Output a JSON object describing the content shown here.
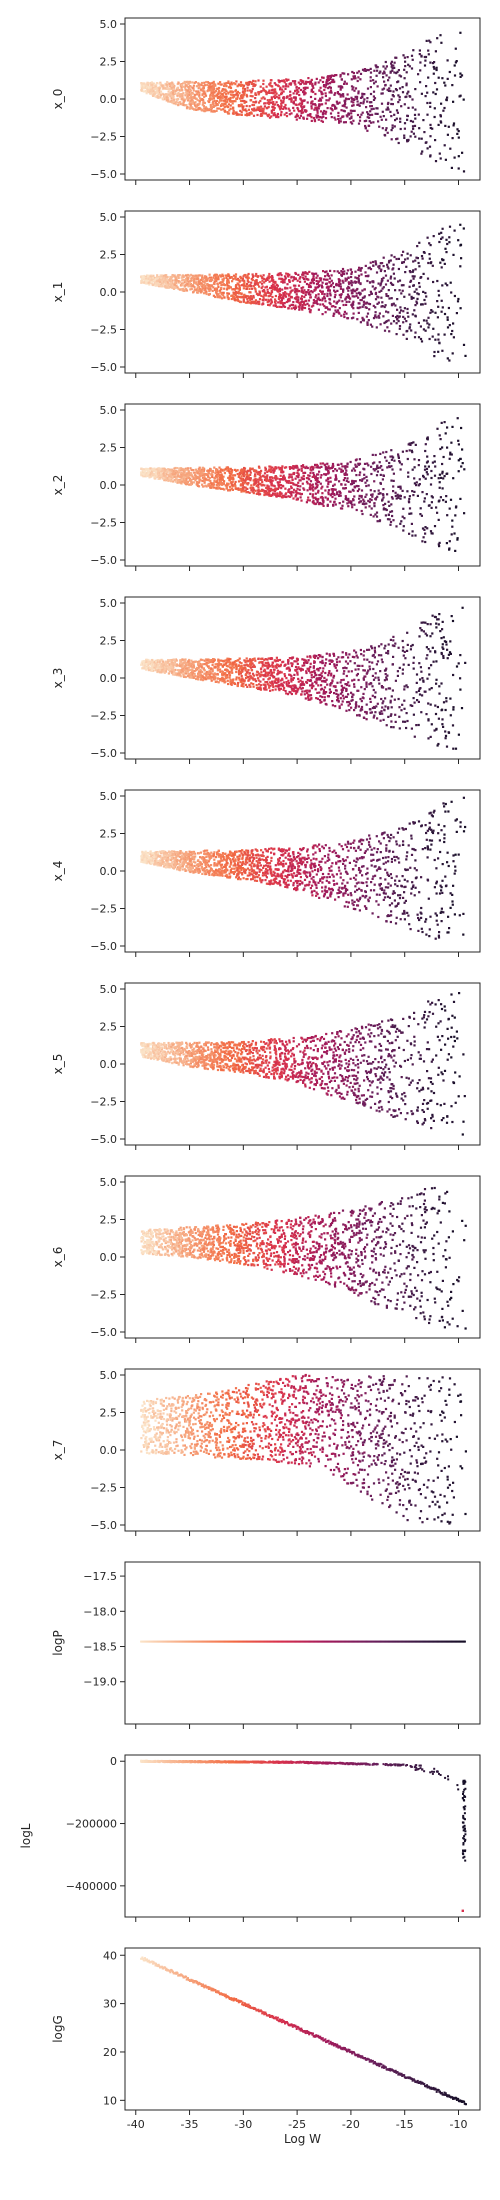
{
  "chart_data": {
    "type": "scatter",
    "layout": "stacked-subplots-shared-x",
    "xlabel": "Log W",
    "xlim": [
      -41,
      -8
    ],
    "xticks": [
      "-40",
      "-35",
      "-30",
      "-25",
      "-20",
      "-15",
      "-10"
    ],
    "xtick_values": [
      -40,
      -35,
      -30,
      -25,
      -20,
      -15,
      -10
    ],
    "colormap": "rocket",
    "colormap_stops": [
      "#fbe3c8",
      "#f6a47c",
      "#f26a43",
      "#d7304d",
      "#a11a5b",
      "#6b1f5c",
      "#3b1a44",
      "#150e26"
    ],
    "grid": false,
    "legend": "none",
    "panels": [
      {
        "ylabel": "x_0",
        "ylim": [
          -5.4,
          5.4
        ],
        "yticks": [
          "−5.0",
          "−2.5",
          "0.0",
          "2.5",
          "5.0"
        ],
        "ytick_values": [
          -5,
          -2.5,
          0,
          2.5,
          5
        ],
        "kind": "funnel",
        "left_x": -39.5,
        "upper_edge": [
          [
            -39.5,
            1.1
          ],
          [
            -30,
            1.2
          ],
          [
            -25,
            1.35
          ],
          [
            -20,
            1.8
          ],
          [
            -15,
            3.1
          ],
          [
            -12,
            4.4
          ],
          [
            -9.3,
            5.0
          ]
        ],
        "lower_edge": [
          [
            -39.5,
            0.5
          ],
          [
            -35,
            -0.7
          ],
          [
            -30,
            -1.1
          ],
          [
            -25,
            -1.4
          ],
          [
            -20,
            -1.7
          ],
          [
            -15,
            -3.1
          ],
          [
            -12,
            -4.2
          ],
          [
            -9.3,
            -5.0
          ]
        ]
      },
      {
        "ylabel": "x_1",
        "ylim": [
          -5.4,
          5.4
        ],
        "yticks": [
          "−5.0",
          "−2.5",
          "0.0",
          "2.5",
          "5.0"
        ],
        "ytick_values": [
          -5,
          -2.5,
          0,
          2.5,
          5
        ],
        "kind": "funnel",
        "left_x": -39.5,
        "upper_edge": [
          [
            -39.5,
            1.1
          ],
          [
            -30,
            1.2
          ],
          [
            -25,
            1.3
          ],
          [
            -20,
            1.6
          ],
          [
            -15,
            2.8
          ],
          [
            -12,
            4.2
          ],
          [
            -9.3,
            5.0
          ]
        ],
        "lower_edge": [
          [
            -39.5,
            0.6
          ],
          [
            -35,
            0.0
          ],
          [
            -30,
            -0.7
          ],
          [
            -25,
            -1.2
          ],
          [
            -20,
            -1.8
          ],
          [
            -15,
            -3.2
          ],
          [
            -12,
            -4.4
          ],
          [
            -9.3,
            -5.0
          ]
        ]
      },
      {
        "ylabel": "x_2",
        "ylim": [
          -5.4,
          5.4
        ],
        "yticks": [
          "−5.0",
          "−2.5",
          "0.0",
          "2.5",
          "5.0"
        ],
        "ytick_values": [
          -5,
          -2.5,
          0,
          2.5,
          5
        ],
        "kind": "funnel",
        "left_x": -39.5,
        "upper_edge": [
          [
            -39.5,
            1.1
          ],
          [
            -30,
            1.2
          ],
          [
            -25,
            1.3
          ],
          [
            -20,
            1.6
          ],
          [
            -15,
            2.6
          ],
          [
            -12,
            4.0
          ],
          [
            -9.3,
            5.0
          ]
        ],
        "lower_edge": [
          [
            -39.5,
            0.6
          ],
          [
            -35,
            0.0
          ],
          [
            -30,
            -0.5
          ],
          [
            -25,
            -1.0
          ],
          [
            -20,
            -1.8
          ],
          [
            -15,
            -3.1
          ],
          [
            -12,
            -4.4
          ],
          [
            -9.3,
            -5.0
          ]
        ]
      },
      {
        "ylabel": "x_3",
        "ylim": [
          -5.4,
          5.4
        ],
        "yticks": [
          "−5.0",
          "−2.5",
          "0.0",
          "2.5",
          "5.0"
        ],
        "ytick_values": [
          -5,
          -2.5,
          0,
          2.5,
          5
        ],
        "kind": "funnel",
        "left_x": -39.5,
        "upper_edge": [
          [
            -39.5,
            1.2
          ],
          [
            -30,
            1.3
          ],
          [
            -25,
            1.4
          ],
          [
            -20,
            1.8
          ],
          [
            -15,
            3.0
          ],
          [
            -12,
            4.5
          ],
          [
            -9.3,
            5.0
          ]
        ],
        "lower_edge": [
          [
            -39.5,
            0.6
          ],
          [
            -35,
            0.0
          ],
          [
            -30,
            -0.6
          ],
          [
            -25,
            -1.2
          ],
          [
            -20,
            -2.4
          ],
          [
            -15,
            -3.6
          ],
          [
            -12,
            -4.6
          ],
          [
            -9.3,
            -5.0
          ]
        ]
      },
      {
        "ylabel": "x_4",
        "ylim": [
          -5.4,
          5.4
        ],
        "yticks": [
          "−5.0",
          "−2.5",
          "0.0",
          "2.5",
          "5.0"
        ],
        "ytick_values": [
          -5,
          -2.5,
          0,
          2.5,
          5
        ],
        "kind": "funnel",
        "left_x": -39.5,
        "upper_edge": [
          [
            -39.5,
            1.3
          ],
          [
            -30,
            1.4
          ],
          [
            -25,
            1.6
          ],
          [
            -20,
            2.0
          ],
          [
            -15,
            3.1
          ],
          [
            -12,
            4.4
          ],
          [
            -9.3,
            5.0
          ]
        ],
        "lower_edge": [
          [
            -39.5,
            0.6
          ],
          [
            -35,
            -0.1
          ],
          [
            -30,
            -0.6
          ],
          [
            -25,
            -1.3
          ],
          [
            -20,
            -2.5
          ],
          [
            -15,
            -3.8
          ],
          [
            -12,
            -4.7
          ],
          [
            -9.3,
            -5.0
          ]
        ]
      },
      {
        "ylabel": "x_5",
        "ylim": [
          -5.4,
          5.4
        ],
        "yticks": [
          "−5.0",
          "−2.5",
          "0.0",
          "2.5",
          "5.0"
        ],
        "ytick_values": [
          -5,
          -2.5,
          0,
          2.5,
          5
        ],
        "kind": "funnel",
        "left_x": -39.5,
        "upper_edge": [
          [
            -39.5,
            1.4
          ],
          [
            -30,
            1.5
          ],
          [
            -25,
            1.8
          ],
          [
            -20,
            2.3
          ],
          [
            -15,
            3.3
          ],
          [
            -12,
            4.5
          ],
          [
            -9.3,
            5.0
          ]
        ],
        "lower_edge": [
          [
            -39.5,
            0.5
          ],
          [
            -35,
            -0.2
          ],
          [
            -30,
            -0.6
          ],
          [
            -25,
            -1.3
          ],
          [
            -20,
            -2.6
          ],
          [
            -15,
            -3.8
          ],
          [
            -12,
            -4.7
          ],
          [
            -9.3,
            -5.0
          ]
        ]
      },
      {
        "ylabel": "x_6",
        "ylim": [
          -5.4,
          5.4
        ],
        "yticks": [
          "−5.0",
          "−2.5",
          "0.0",
          "2.5",
          "5.0"
        ],
        "ytick_values": [
          -5,
          -2.5,
          0,
          2.5,
          5
        ],
        "kind": "funnel",
        "left_x": -39.5,
        "upper_edge": [
          [
            -39.5,
            1.8
          ],
          [
            -30,
            2.2
          ],
          [
            -25,
            2.6
          ],
          [
            -20,
            3.2
          ],
          [
            -15,
            4.1
          ],
          [
            -12,
            4.8
          ],
          [
            -9.3,
            5.0
          ]
        ],
        "lower_edge": [
          [
            -39.5,
            0.2
          ],
          [
            -35,
            0.0
          ],
          [
            -30,
            -0.5
          ],
          [
            -25,
            -1.2
          ],
          [
            -20,
            -2.3
          ],
          [
            -18,
            -3.1
          ],
          [
            -15,
            -3.8
          ],
          [
            -12,
            -4.6
          ],
          [
            -9.3,
            -5.0
          ]
        ]
      },
      {
        "ylabel": "x_7",
        "ylim": [
          -5.4,
          5.4
        ],
        "yticks": [
          "−5.0",
          "−2.5",
          "0.0",
          "2.5",
          "5.0"
        ],
        "ytick_values": [
          -5,
          -2.5,
          0,
          2.5,
          5
        ],
        "kind": "funnel",
        "left_x": -39.5,
        "upper_edge": [
          [
            -39.5,
            3.3
          ],
          [
            -33,
            3.8
          ],
          [
            -28,
            4.6
          ],
          [
            -25,
            5.0
          ],
          [
            -9.3,
            5.0
          ]
        ],
        "lower_edge": [
          [
            -39.5,
            -0.2
          ],
          [
            -35,
            -0.4
          ],
          [
            -30,
            -0.6
          ],
          [
            -25,
            -1.0
          ],
          [
            -22,
            -1.5
          ],
          [
            -20,
            -2.4
          ],
          [
            -18,
            -3.4
          ],
          [
            -16,
            -4.3
          ],
          [
            -15,
            -5.0
          ],
          [
            -9.3,
            -5.0
          ]
        ]
      },
      {
        "ylabel": "logP",
        "ylim": [
          -19.6,
          -17.3
        ],
        "yticks": [
          "−19.0",
          "−18.5",
          "−18.0",
          "−17.5"
        ],
        "ytick_values": [
          -19,
          -18.5,
          -18,
          -17.5
        ],
        "kind": "constant",
        "value": -18.43,
        "x_range": [
          -39.5,
          -9.3
        ]
      },
      {
        "ylabel": "logL",
        "ylim": [
          -500000,
          20000
        ],
        "yticks": [
          "−400000",
          "−200000",
          "0"
        ],
        "ytick_values": [
          -400000,
          -200000,
          0
        ],
        "kind": "drop",
        "curve": [
          [
            -39.5,
            0
          ],
          [
            -25,
            -3000
          ],
          [
            -15,
            -12000
          ],
          [
            -12,
            -30000
          ],
          [
            -10.5,
            -60000
          ],
          [
            -9.6,
            -120000
          ],
          [
            -9.35,
            -320000
          ]
        ],
        "outlier": [
          -9.6,
          -480000
        ]
      },
      {
        "ylabel": "logG",
        "ylim": [
          8,
          41.5
        ],
        "yticks": [
          "10",
          "20",
          "30",
          "40"
        ],
        "ytick_values": [
          10,
          20,
          30,
          40
        ],
        "kind": "diagonal",
        "line": [
          [
            -39.5,
            39.5
          ],
          [
            -9.3,
            9.3
          ]
        ]
      }
    ]
  }
}
